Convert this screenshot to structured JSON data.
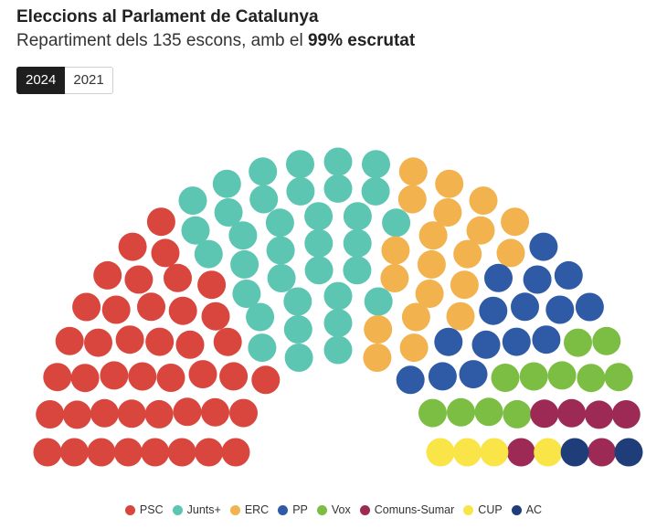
{
  "header": {
    "title": "Eleccions al Parlament de Catalunya",
    "subtitle_prefix": "Repartiment dels 135 escons, amb el ",
    "subtitle_bold": "99% escrutat"
  },
  "tabs": [
    {
      "label": "2024",
      "active": true
    },
    {
      "label": "2021",
      "active": false
    }
  ],
  "chart_data": {
    "type": "hemicycle",
    "total_seats": 135,
    "series": [
      {
        "name": "PSC",
        "seats": 42,
        "color": "#d9463e"
      },
      {
        "name": "Junts+",
        "seats": 35,
        "color": "#5cc6b3"
      },
      {
        "name": "ERC",
        "seats": 20,
        "color": "#f2b24d"
      },
      {
        "name": "PP",
        "seats": 15,
        "color": "#2e5aa6"
      },
      {
        "name": "Vox",
        "seats": 11,
        "color": "#7cbd43"
      },
      {
        "name": "Comuns-Sumar",
        "seats": 6,
        "color": "#9c2a55"
      },
      {
        "name": "CUP",
        "seats": 4,
        "color": "#f9e547"
      },
      {
        "name": "AC",
        "seats": 2,
        "color": "#1f3d79"
      }
    ],
    "legend_position": "bottom"
  }
}
